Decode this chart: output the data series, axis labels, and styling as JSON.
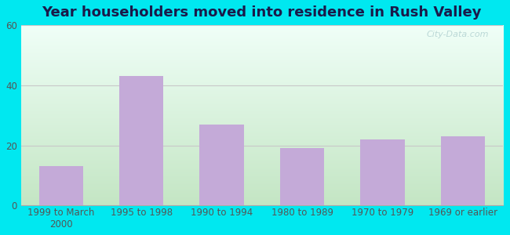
{
  "title": "Year householders moved into residence in Rush Valley",
  "categories": [
    "1999 to March\n2000",
    "1995 to 1998",
    "1990 to 1994",
    "1980 to 1989",
    "1970 to 1979",
    "1969 or earlier"
  ],
  "values": [
    13,
    43,
    27,
    19,
    22,
    23
  ],
  "bar_color": "#c4aad8",
  "ylim": [
    0,
    60
  ],
  "yticks": [
    0,
    20,
    40,
    60
  ],
  "background_outer": "#00e8f0",
  "grad_color_top": "#f0fff8",
  "grad_color_bottom": "#d4f0d4",
  "grid_color": "#c8c8c8",
  "title_fontsize": 13,
  "title_color": "#1a1a4a",
  "tick_fontsize": 8.5,
  "tick_color": "#555555",
  "watermark": "City-Data.com"
}
